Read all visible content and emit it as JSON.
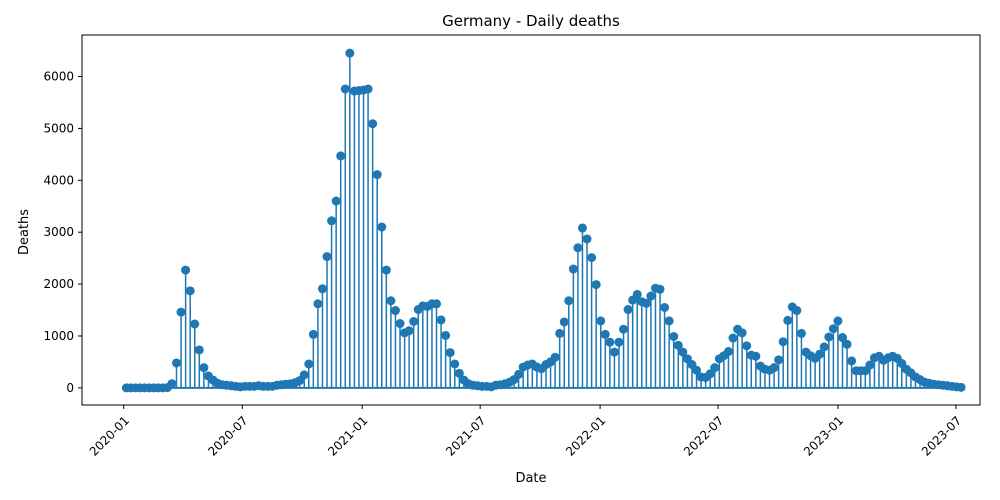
{
  "chart_data": {
    "type": "stem",
    "title": "Germany - Daily deaths",
    "xlabel": "Date",
    "ylabel": "Deaths",
    "color": "#1f77b4",
    "grid": false,
    "legend": "none",
    "xlim": [
      "2019-10-29",
      "2023-08-07"
    ],
    "ylim": [
      -330,
      6800
    ],
    "x_ticks": [
      "2020-01-01",
      "2020-07-01",
      "2021-01-01",
      "2021-07-01",
      "2022-01-01",
      "2022-07-01",
      "2023-01-01",
      "2023-07-01"
    ],
    "x_tick_labels": [
      "2020-01",
      "2020-07",
      "2021-01",
      "2021-07",
      "2022-01",
      "2022-07",
      "2023-01",
      "2023-07"
    ],
    "y_ticks": [
      0,
      1000,
      2000,
      3000,
      4000,
      5000,
      6000
    ],
    "y_tick_labels": [
      "0",
      "1000",
      "2000",
      "3000",
      "4000",
      "5000",
      "6000"
    ],
    "x": [
      "2020-01-05",
      "2020-01-12",
      "2020-01-19",
      "2020-01-26",
      "2020-02-02",
      "2020-02-09",
      "2020-02-16",
      "2020-02-23",
      "2020-03-01",
      "2020-03-08",
      "2020-03-15",
      "2020-03-22",
      "2020-03-29",
      "2020-04-05",
      "2020-04-12",
      "2020-04-19",
      "2020-04-26",
      "2020-05-03",
      "2020-05-10",
      "2020-05-17",
      "2020-05-24",
      "2020-05-31",
      "2020-06-07",
      "2020-06-14",
      "2020-06-21",
      "2020-06-28",
      "2020-07-05",
      "2020-07-12",
      "2020-07-19",
      "2020-07-26",
      "2020-08-02",
      "2020-08-09",
      "2020-08-16",
      "2020-08-23",
      "2020-08-30",
      "2020-09-06",
      "2020-09-13",
      "2020-09-20",
      "2020-09-27",
      "2020-10-04",
      "2020-10-11",
      "2020-10-18",
      "2020-10-25",
      "2020-11-01",
      "2020-11-08",
      "2020-11-15",
      "2020-11-22",
      "2020-11-29",
      "2020-12-06",
      "2020-12-13",
      "2020-12-20",
      "2020-12-27",
      "2021-01-03",
      "2021-01-10",
      "2021-01-17",
      "2021-01-24",
      "2021-01-31",
      "2021-02-07",
      "2021-02-14",
      "2021-02-21",
      "2021-02-28",
      "2021-03-07",
      "2021-03-14",
      "2021-03-21",
      "2021-03-28",
      "2021-04-04",
      "2021-04-11",
      "2021-04-18",
      "2021-04-25",
      "2021-05-02",
      "2021-05-09",
      "2021-05-16",
      "2021-05-23",
      "2021-05-30",
      "2021-06-06",
      "2021-06-13",
      "2021-06-20",
      "2021-06-27",
      "2021-07-04",
      "2021-07-11",
      "2021-07-18",
      "2021-07-25",
      "2021-08-01",
      "2021-08-08",
      "2021-08-15",
      "2021-08-22",
      "2021-08-29",
      "2021-09-05",
      "2021-09-12",
      "2021-09-19",
      "2021-09-26",
      "2021-10-03",
      "2021-10-10",
      "2021-10-17",
      "2021-10-24",
      "2021-10-31",
      "2021-11-07",
      "2021-11-14",
      "2021-11-21",
      "2021-11-28",
      "2021-12-05",
      "2021-12-12",
      "2021-12-19",
      "2021-12-26",
      "2022-01-02",
      "2022-01-09",
      "2022-01-16",
      "2022-01-23",
      "2022-01-30",
      "2022-02-06",
      "2022-02-13",
      "2022-02-20",
      "2022-02-27",
      "2022-03-06",
      "2022-03-13",
      "2022-03-20",
      "2022-03-27",
      "2022-04-03",
      "2022-04-10",
      "2022-04-17",
      "2022-04-24",
      "2022-05-01",
      "2022-05-08",
      "2022-05-15",
      "2022-05-22",
      "2022-05-29",
      "2022-06-05",
      "2022-06-12",
      "2022-06-19",
      "2022-06-26",
      "2022-07-03",
      "2022-07-10",
      "2022-07-17",
      "2022-07-24",
      "2022-07-31",
      "2022-08-07",
      "2022-08-14",
      "2022-08-21",
      "2022-08-28",
      "2022-09-04",
      "2022-09-11",
      "2022-09-18",
      "2022-09-25",
      "2022-10-02",
      "2022-10-09",
      "2022-10-16",
      "2022-10-23",
      "2022-10-30",
      "2022-11-06",
      "2022-11-13",
      "2022-11-20",
      "2022-11-27",
      "2022-12-04",
      "2022-12-11",
      "2022-12-18",
      "2022-12-25",
      "2023-01-01",
      "2023-01-08",
      "2023-01-15",
      "2023-01-22",
      "2023-01-29",
      "2023-02-05",
      "2023-02-12",
      "2023-02-19",
      "2023-02-26",
      "2023-03-05",
      "2023-03-12",
      "2023-03-19",
      "2023-03-26",
      "2023-04-02",
      "2023-04-09",
      "2023-04-16",
      "2023-04-23",
      "2023-04-30",
      "2023-05-07",
      "2023-05-14",
      "2023-05-21",
      "2023-05-28",
      "2023-06-04",
      "2023-06-11",
      "2023-06-18",
      "2023-06-25",
      "2023-07-02",
      "2023-07-09"
    ],
    "values": [
      0,
      0,
      0,
      0,
      0,
      0,
      0,
      0,
      0,
      5,
      80,
      480,
      1460,
      2270,
      1870,
      1230,
      730,
      390,
      230,
      150,
      90,
      60,
      50,
      40,
      30,
      20,
      30,
      30,
      30,
      40,
      30,
      30,
      30,
      50,
      60,
      70,
      80,
      100,
      140,
      250,
      460,
      1030,
      1620,
      1910,
      2530,
      3220,
      3600,
      4470,
      5760,
      6450,
      5720,
      5730,
      5740,
      5760,
      5090,
      4110,
      3100,
      2270,
      1680,
      1490,
      1240,
      1060,
      1100,
      1280,
      1510,
      1580,
      1570,
      1620,
      1620,
      1310,
      1010,
      680,
      460,
      280,
      150,
      80,
      50,
      40,
      30,
      30,
      20,
      50,
      60,
      80,
      110,
      160,
      260,
      400,
      440,
      460,
      400,
      370,
      450,
      500,
      590,
      1050,
      1270,
      1680,
      2290,
      2700,
      3080,
      2870,
      2510,
      1990,
      1290,
      1030,
      880,
      690,
      880,
      1130,
      1510,
      1690,
      1800,
      1660,
      1630,
      1770,
      1920,
      1900,
      1550,
      1290,
      990,
      820,
      690,
      560,
      450,
      340,
      210,
      200,
      270,
      390,
      560,
      620,
      700,
      960,
      1130,
      1060,
      810,
      630,
      610,
      420,
      360,
      340,
      390,
      540,
      890,
      1300,
      1560,
      1490,
      1050,
      690,
      620,
      570,
      650,
      790,
      980,
      1140,
      1290,
      970,
      840,
      520,
      330,
      330,
      330,
      440,
      580,
      610,
      530,
      580,
      610,
      570,
      470,
      360,
      290,
      210,
      160,
      110,
      90,
      70,
      60,
      50,
      40,
      30,
      20,
      10
    ]
  }
}
